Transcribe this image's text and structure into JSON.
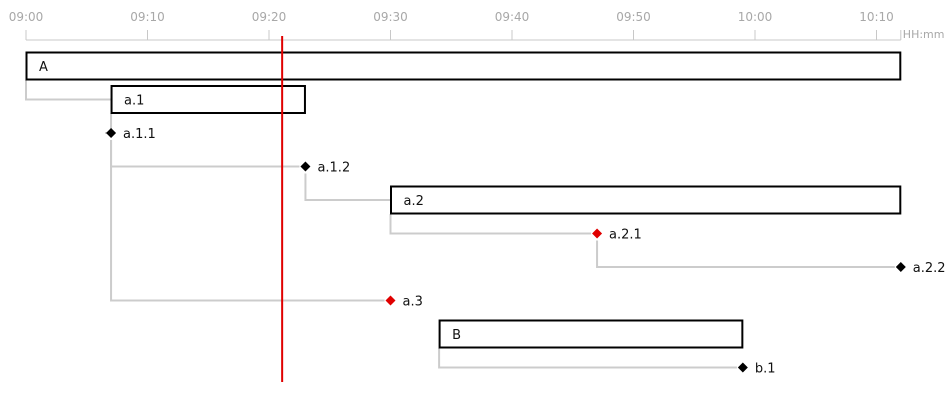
{
  "timeline": {
    "start": "09:00",
    "end": "10:12",
    "unit_label": "HH:mm",
    "ticks": [
      "09:00",
      "09:10",
      "09:20",
      "09:30",
      "09:40",
      "09:50",
      "10:00",
      "10:10"
    ],
    "current_time": "09:21",
    "current_line_color": "#e00000"
  },
  "tasks": [
    {
      "id": "A",
      "type": "bar",
      "label": "A",
      "start": "09:00",
      "end": "10:12"
    },
    {
      "id": "a.1",
      "type": "bar",
      "label": "a.1",
      "start": "09:07",
      "end": "09:23",
      "parent": "A"
    },
    {
      "id": "a.1.1",
      "type": "milestone",
      "label": "a.1.1",
      "time": "09:07",
      "color": "#000000",
      "parent": "a.1"
    },
    {
      "id": "a.1.2",
      "type": "milestone",
      "label": "a.1.2",
      "time": "09:23",
      "color": "#000000",
      "parent": "a.1.1"
    },
    {
      "id": "a.2",
      "type": "bar",
      "label": "a.2",
      "start": "09:30",
      "end": "10:12",
      "parent": "a.1.2"
    },
    {
      "id": "a.2.1",
      "type": "milestone",
      "label": "a.2.1",
      "time": "09:47",
      "color": "#e00000",
      "parent": "a.2"
    },
    {
      "id": "a.2.2",
      "type": "milestone",
      "label": "a.2.2",
      "time": "10:12",
      "color": "#000000",
      "parent": "a.2.1"
    },
    {
      "id": "a.3",
      "type": "milestone",
      "label": "a.3",
      "time": "09:30",
      "color": "#e00000",
      "parent": "a.1.1"
    },
    {
      "id": "B",
      "type": "bar",
      "label": "B",
      "start": "09:34",
      "end": "09:59"
    },
    {
      "id": "b.1",
      "type": "milestone",
      "label": "b.1",
      "time": "09:59",
      "color": "#000000",
      "parent": "B"
    }
  ],
  "colors": {
    "axis": "#c8c8c8",
    "connector": "#cccccc",
    "bar_border": "#000000",
    "tick_text": "#a8a8a8"
  }
}
